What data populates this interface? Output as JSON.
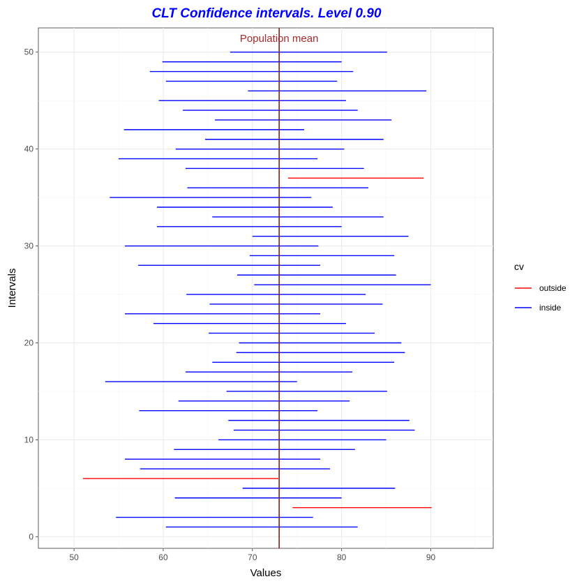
{
  "chart_data": {
    "type": "interval",
    "title": "CLT Confidence intervals. Level  0.90",
    "xlabel": "Values",
    "ylabel": "Intervals",
    "xlim": [
      46,
      97
    ],
    "ylim": [
      -1.2,
      52.5
    ],
    "x_ticks": [
      50,
      60,
      70,
      80,
      90
    ],
    "y_ticks": [
      0,
      10,
      20,
      30,
      40,
      50
    ],
    "grid": true,
    "population_mean": 73,
    "annotation": "Population mean",
    "legend": {
      "title": "cv",
      "placement": "right",
      "entries": [
        {
          "label": "outside",
          "color": "#ff0000"
        },
        {
          "label": "inside",
          "color": "#0000ff"
        }
      ]
    },
    "colors": {
      "title": "#0000ff",
      "mean_line": "#8b1a1a",
      "annotation": "#a52a2a",
      "inside": "#0000ff",
      "outside": "#ff0000"
    },
    "intervals": [
      {
        "id": 1,
        "lower": 60.3,
        "upper": 81.8,
        "cv": "inside"
      },
      {
        "id": 2,
        "lower": 54.7,
        "upper": 76.8,
        "cv": "inside"
      },
      {
        "id": 3,
        "lower": 74.5,
        "upper": 90.1,
        "cv": "outside"
      },
      {
        "id": 4,
        "lower": 61.3,
        "upper": 80.0,
        "cv": "inside"
      },
      {
        "id": 5,
        "lower": 68.9,
        "upper": 86.0,
        "cv": "inside"
      },
      {
        "id": 6,
        "lower": 51.0,
        "upper": 72.9,
        "cv": "outside"
      },
      {
        "id": 7,
        "lower": 57.4,
        "upper": 78.7,
        "cv": "inside"
      },
      {
        "id": 8,
        "lower": 55.7,
        "upper": 77.6,
        "cv": "inside"
      },
      {
        "id": 9,
        "lower": 61.2,
        "upper": 81.5,
        "cv": "inside"
      },
      {
        "id": 10,
        "lower": 66.2,
        "upper": 85.0,
        "cv": "inside"
      },
      {
        "id": 11,
        "lower": 67.9,
        "upper": 88.2,
        "cv": "inside"
      },
      {
        "id": 12,
        "lower": 67.3,
        "upper": 87.6,
        "cv": "inside"
      },
      {
        "id": 13,
        "lower": 57.3,
        "upper": 77.3,
        "cv": "inside"
      },
      {
        "id": 14,
        "lower": 61.7,
        "upper": 80.9,
        "cv": "inside"
      },
      {
        "id": 15,
        "lower": 67.1,
        "upper": 85.1,
        "cv": "inside"
      },
      {
        "id": 16,
        "lower": 53.5,
        "upper": 75.0,
        "cv": "inside"
      },
      {
        "id": 17,
        "lower": 62.5,
        "upper": 81.2,
        "cv": "inside"
      },
      {
        "id": 18,
        "lower": 65.5,
        "upper": 85.9,
        "cv": "inside"
      },
      {
        "id": 19,
        "lower": 68.2,
        "upper": 87.1,
        "cv": "inside"
      },
      {
        "id": 20,
        "lower": 68.5,
        "upper": 86.7,
        "cv": "inside"
      },
      {
        "id": 21,
        "lower": 65.1,
        "upper": 83.7,
        "cv": "inside"
      },
      {
        "id": 22,
        "lower": 58.9,
        "upper": 80.5,
        "cv": "inside"
      },
      {
        "id": 23,
        "lower": 55.7,
        "upper": 77.6,
        "cv": "inside"
      },
      {
        "id": 24,
        "lower": 65.2,
        "upper": 84.6,
        "cv": "inside"
      },
      {
        "id": 25,
        "lower": 62.6,
        "upper": 82.7,
        "cv": "inside"
      },
      {
        "id": 26,
        "lower": 70.2,
        "upper": 90.0,
        "cv": "inside"
      },
      {
        "id": 27,
        "lower": 68.3,
        "upper": 86.1,
        "cv": "inside"
      },
      {
        "id": 28,
        "lower": 57.2,
        "upper": 77.6,
        "cv": "inside"
      },
      {
        "id": 29,
        "lower": 69.7,
        "upper": 85.9,
        "cv": "inside"
      },
      {
        "id": 30,
        "lower": 55.7,
        "upper": 77.4,
        "cv": "inside"
      },
      {
        "id": 31,
        "lower": 70.0,
        "upper": 87.5,
        "cv": "inside"
      },
      {
        "id": 32,
        "lower": 59.3,
        "upper": 80.0,
        "cv": "inside"
      },
      {
        "id": 33,
        "lower": 65.5,
        "upper": 84.7,
        "cv": "inside"
      },
      {
        "id": 34,
        "lower": 59.3,
        "upper": 79.0,
        "cv": "inside"
      },
      {
        "id": 35,
        "lower": 54.0,
        "upper": 76.6,
        "cv": "inside"
      },
      {
        "id": 36,
        "lower": 62.7,
        "upper": 83.0,
        "cv": "inside"
      },
      {
        "id": 37,
        "lower": 74.0,
        "upper": 89.2,
        "cv": "outside"
      },
      {
        "id": 38,
        "lower": 62.5,
        "upper": 82.5,
        "cv": "inside"
      },
      {
        "id": 39,
        "lower": 55.0,
        "upper": 77.3,
        "cv": "inside"
      },
      {
        "id": 40,
        "lower": 61.4,
        "upper": 80.3,
        "cv": "inside"
      },
      {
        "id": 41,
        "lower": 64.7,
        "upper": 84.7,
        "cv": "inside"
      },
      {
        "id": 42,
        "lower": 55.6,
        "upper": 75.8,
        "cv": "inside"
      },
      {
        "id": 43,
        "lower": 65.8,
        "upper": 85.6,
        "cv": "inside"
      },
      {
        "id": 44,
        "lower": 62.2,
        "upper": 81.8,
        "cv": "inside"
      },
      {
        "id": 45,
        "lower": 59.5,
        "upper": 80.5,
        "cv": "inside"
      },
      {
        "id": 46,
        "lower": 69.5,
        "upper": 89.5,
        "cv": "inside"
      },
      {
        "id": 47,
        "lower": 60.3,
        "upper": 79.5,
        "cv": "inside"
      },
      {
        "id": 48,
        "lower": 58.5,
        "upper": 81.3,
        "cv": "inside"
      },
      {
        "id": 49,
        "lower": 59.9,
        "upper": 80.0,
        "cv": "inside"
      },
      {
        "id": 50,
        "lower": 67.5,
        "upper": 85.1,
        "cv": "inside"
      }
    ]
  }
}
